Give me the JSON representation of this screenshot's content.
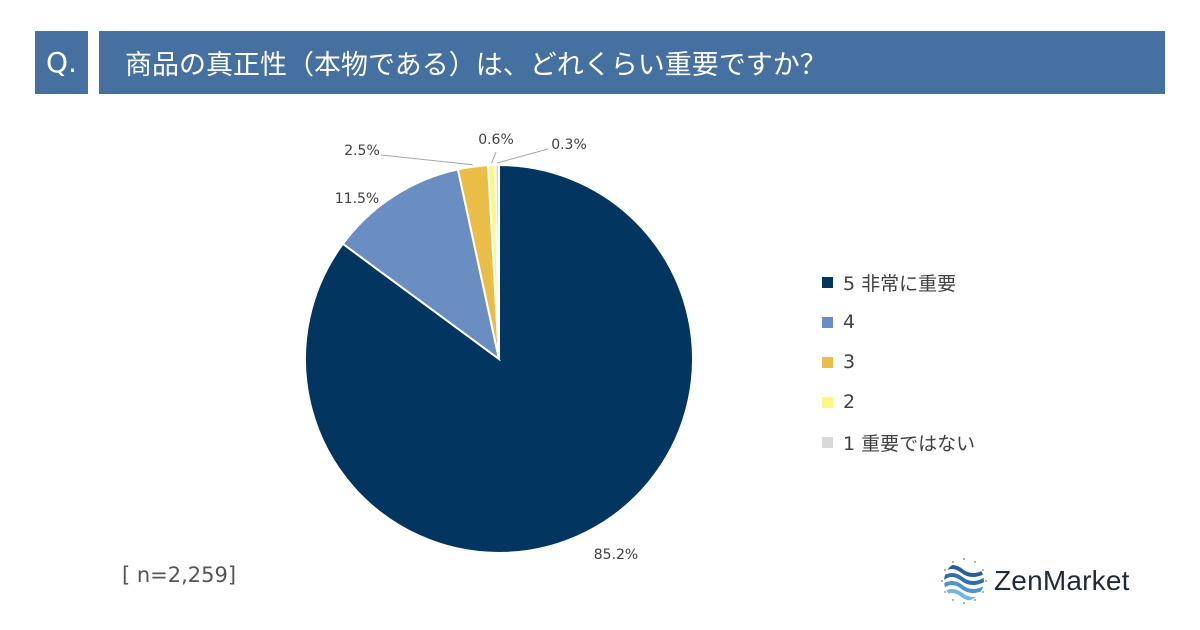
{
  "header": {
    "q_label": "Q.",
    "question": "商品の真正性（本物である）は、どれくらい重要ですか？"
  },
  "chart_data": {
    "type": "pie",
    "categories": [
      "5 非常に重要",
      "4",
      "3",
      "2",
      "1 重要ではない"
    ],
    "values": [
      85.2,
      11.5,
      2.5,
      0.6,
      0.3
    ],
    "labels": [
      "85.2%",
      "11.5%",
      "2.5%",
      "0.6%",
      "0.3%"
    ],
    "colors": [
      "#023660",
      "#6a8ec2",
      "#eabd46",
      "#fbf784",
      "#d9d9d9"
    ],
    "legend_position": "right",
    "start": "12 o'clock, clockwise"
  },
  "footer": {
    "sample_size": "[ n=2,259]"
  },
  "logo": {
    "text": "ZenMarket",
    "icon": "wave-circle-icon"
  }
}
